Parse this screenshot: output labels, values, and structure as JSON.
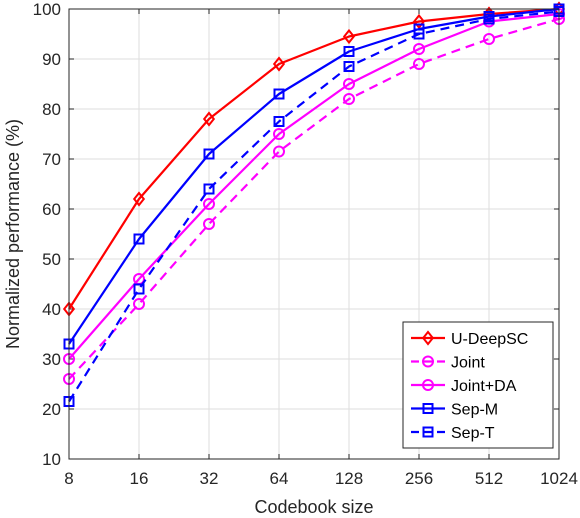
{
  "chart_data": {
    "type": "line",
    "xlabel": "Codebook size",
    "ylabel": "Normalized performance (%)",
    "x": [
      8,
      16,
      32,
      64,
      128,
      256,
      512,
      1024
    ],
    "x_ticks": [
      "8",
      "16",
      "32",
      "64",
      "128",
      "256",
      "512",
      "1024"
    ],
    "x_scale": "log2",
    "ylim": [
      10,
      100
    ],
    "y_ticks": [
      10,
      20,
      30,
      40,
      50,
      60,
      70,
      80,
      90,
      100
    ],
    "grid": true,
    "legend_position": "bottom-right",
    "series": [
      {
        "name": "U-DeepSC",
        "color": "#ff0000",
        "dash": "solid",
        "marker": "diamond",
        "values": [
          40,
          62,
          78,
          89,
          94.5,
          97.5,
          99,
          100
        ]
      },
      {
        "name": "Joint",
        "color": "#ff00ff",
        "dash": "dashed",
        "marker": "circle",
        "values": [
          26,
          41,
          57,
          71.5,
          82,
          89,
          94,
          98
        ]
      },
      {
        "name": "Joint+DA",
        "color": "#ff00ff",
        "dash": "solid",
        "marker": "circle",
        "values": [
          30,
          46,
          61,
          75,
          85,
          92,
          97.5,
          99
        ]
      },
      {
        "name": "Sep-M",
        "color": "#0000ff",
        "dash": "solid",
        "marker": "square",
        "values": [
          33,
          54,
          71,
          83,
          91.5,
          96,
          98.5,
          100
        ]
      },
      {
        "name": "Sep-T",
        "color": "#0000ff",
        "dash": "dashed",
        "marker": "square",
        "values": [
          21.5,
          44,
          64,
          77.5,
          88.5,
          95,
          98,
          99.5
        ]
      }
    ]
  }
}
